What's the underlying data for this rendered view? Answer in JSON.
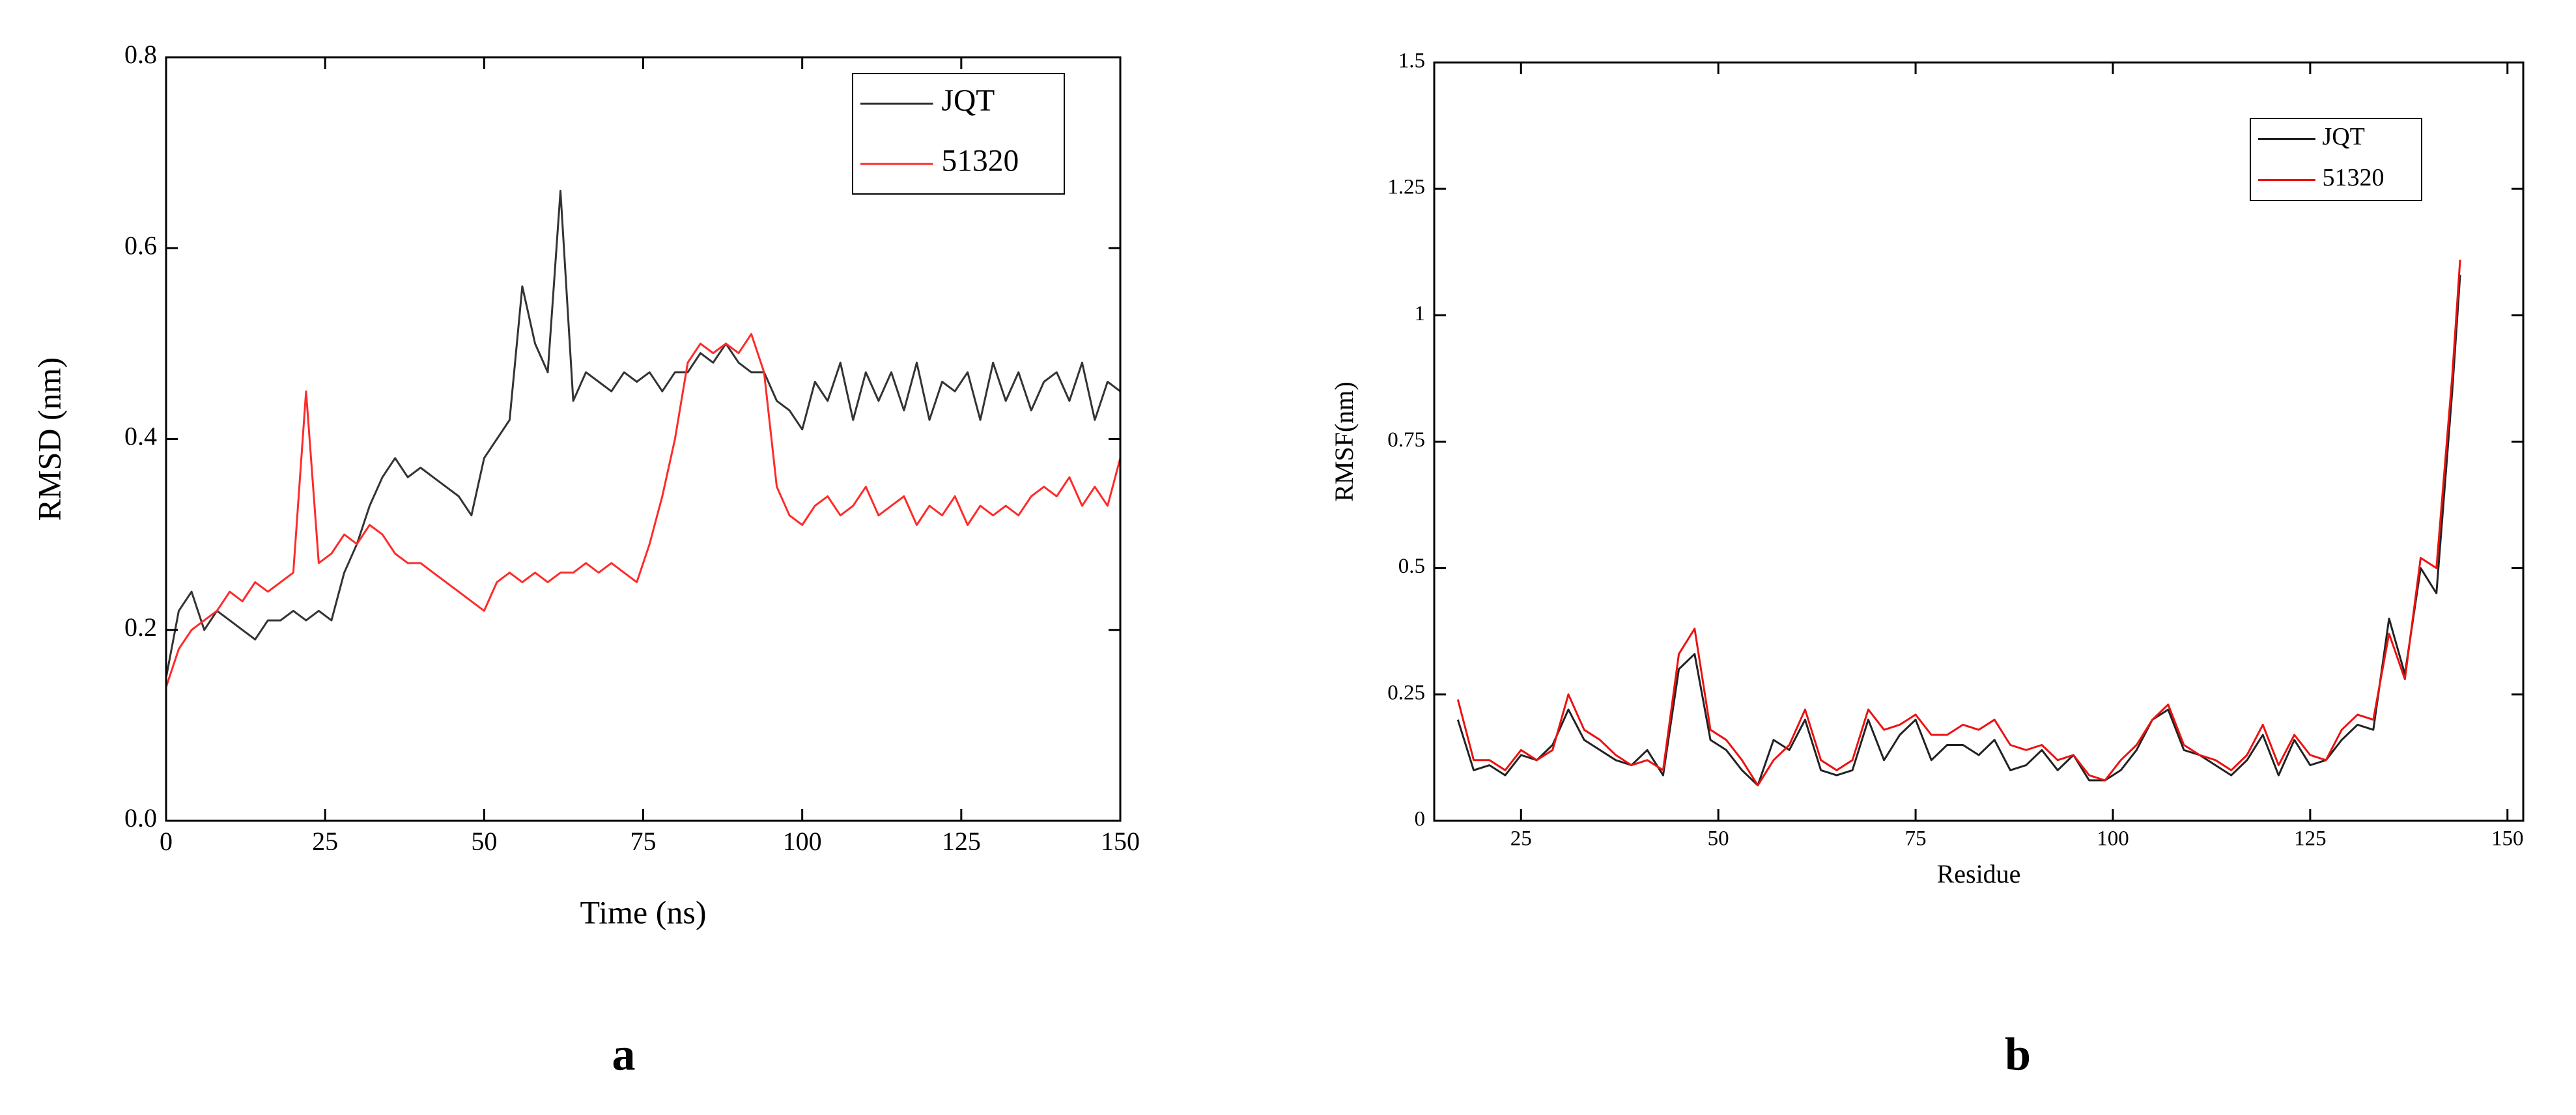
{
  "chart_data": [
    {
      "type": "line",
      "panel_label": "a",
      "xlabel": "Time (ns)",
      "ylabel": "RMSD (nm)",
      "xlim": [
        0,
        150
      ],
      "ylim": [
        0,
        0.8
      ],
      "xticks": [
        0,
        25,
        50,
        75,
        100,
        125,
        150
      ],
      "yticks": [
        {
          "value": 0,
          "label": "0.0"
        },
        0.2,
        0.4,
        0.6,
        0.8
      ],
      "legend": "upper right",
      "x": [
        0,
        2,
        4,
        6,
        8,
        10,
        12,
        14,
        16,
        18,
        20,
        22,
        24,
        26,
        28,
        30,
        32,
        34,
        36,
        38,
        40,
        42,
        44,
        46,
        48,
        50,
        52,
        54,
        56,
        58,
        60,
        62,
        64,
        66,
        68,
        70,
        72,
        74,
        76,
        78,
        80,
        82,
        84,
        86,
        88,
        90,
        92,
        94,
        96,
        98,
        100,
        102,
        104,
        106,
        108,
        110,
        112,
        114,
        116,
        118,
        120,
        122,
        124,
        126,
        128,
        130,
        132,
        134,
        136,
        138,
        140,
        142,
        144,
        146,
        148,
        150
      ],
      "series": [
        {
          "name": "JQT",
          "color": "#333333",
          "values": [
            0.15,
            0.22,
            0.24,
            0.2,
            0.22,
            0.21,
            0.2,
            0.19,
            0.21,
            0.21,
            0.22,
            0.21,
            0.22,
            0.21,
            0.26,
            0.29,
            0.33,
            0.36,
            0.38,
            0.36,
            0.37,
            0.36,
            0.35,
            0.34,
            0.32,
            0.38,
            0.4,
            0.42,
            0.56,
            0.5,
            0.47,
            0.66,
            0.44,
            0.47,
            0.46,
            0.45,
            0.47,
            0.46,
            0.47,
            0.45,
            0.47,
            0.47,
            0.49,
            0.48,
            0.5,
            0.48,
            0.47,
            0.47,
            0.44,
            0.43,
            0.41,
            0.46,
            0.44,
            0.48,
            0.42,
            0.47,
            0.44,
            0.47,
            0.43,
            0.48,
            0.42,
            0.46,
            0.45,
            0.47,
            0.42,
            0.48,
            0.44,
            0.47,
            0.43,
            0.46,
            0.47,
            0.44,
            0.48,
            0.42,
            0.46,
            0.45
          ]
        },
        {
          "name": "51320",
          "color": "#ff2a2a",
          "values": [
            0.14,
            0.18,
            0.2,
            0.21,
            0.22,
            0.24,
            0.23,
            0.25,
            0.24,
            0.25,
            0.26,
            0.45,
            0.27,
            0.28,
            0.3,
            0.29,
            0.31,
            0.3,
            0.28,
            0.27,
            0.27,
            0.26,
            0.25,
            0.24,
            0.23,
            0.22,
            0.25,
            0.26,
            0.25,
            0.26,
            0.25,
            0.26,
            0.26,
            0.27,
            0.26,
            0.27,
            0.26,
            0.25,
            0.29,
            0.34,
            0.4,
            0.48,
            0.5,
            0.49,
            0.5,
            0.49,
            0.51,
            0.47,
            0.35,
            0.32,
            0.31,
            0.33,
            0.34,
            0.32,
            0.33,
            0.35,
            0.32,
            0.33,
            0.34,
            0.31,
            0.33,
            0.32,
            0.34,
            0.31,
            0.33,
            0.32,
            0.33,
            0.32,
            0.34,
            0.35,
            0.34,
            0.36,
            0.33,
            0.35,
            0.33,
            0.38
          ]
        }
      ]
    },
    {
      "type": "line",
      "panel_label": "b",
      "xlabel": "Residue",
      "ylabel": "RMSF(nm)",
      "xlim": [
        14,
        152
      ],
      "ylim": [
        0,
        1.5
      ],
      "xticks": [
        25,
        50,
        75,
        100,
        125,
        150
      ],
      "yticks": [
        0,
        0.25,
        0.5,
        0.75,
        1,
        1.25,
        1.5
      ],
      "legend": "upper right",
      "x": [
        17,
        19,
        21,
        23,
        25,
        27,
        29,
        31,
        33,
        35,
        37,
        39,
        41,
        43,
        45,
        47,
        49,
        51,
        53,
        55,
        57,
        59,
        61,
        63,
        65,
        67,
        69,
        71,
        73,
        75,
        77,
        79,
        81,
        83,
        85,
        87,
        89,
        91,
        93,
        95,
        97,
        99,
        101,
        103,
        105,
        107,
        109,
        111,
        113,
        115,
        117,
        119,
        121,
        123,
        125,
        127,
        129,
        131,
        133,
        135,
        137,
        139,
        141,
        143,
        144
      ],
      "series": [
        {
          "name": "JQT",
          "color": "#222222",
          "values": [
            0.2,
            0.1,
            0.11,
            0.09,
            0.13,
            0.12,
            0.15,
            0.22,
            0.16,
            0.14,
            0.12,
            0.11,
            0.14,
            0.09,
            0.3,
            0.33,
            0.16,
            0.14,
            0.1,
            0.07,
            0.16,
            0.14,
            0.2,
            0.1,
            0.09,
            0.1,
            0.2,
            0.12,
            0.17,
            0.2,
            0.12,
            0.15,
            0.15,
            0.13,
            0.16,
            0.1,
            0.11,
            0.14,
            0.1,
            0.13,
            0.08,
            0.08,
            0.1,
            0.14,
            0.2,
            0.22,
            0.14,
            0.13,
            0.11,
            0.09,
            0.12,
            0.17,
            0.09,
            0.16,
            0.11,
            0.12,
            0.16,
            0.19,
            0.18,
            0.4,
            0.29,
            0.5,
            0.45,
            0.85,
            1.08
          ]
        },
        {
          "name": "51320",
          "color": "#ee1111",
          "values": [
            0.24,
            0.12,
            0.12,
            0.1,
            0.14,
            0.12,
            0.14,
            0.25,
            0.18,
            0.16,
            0.13,
            0.11,
            0.12,
            0.1,
            0.33,
            0.38,
            0.18,
            0.16,
            0.12,
            0.07,
            0.12,
            0.15,
            0.22,
            0.12,
            0.1,
            0.12,
            0.22,
            0.18,
            0.19,
            0.21,
            0.17,
            0.17,
            0.19,
            0.18,
            0.2,
            0.15,
            0.14,
            0.15,
            0.12,
            0.13,
            0.09,
            0.08,
            0.12,
            0.15,
            0.2,
            0.23,
            0.15,
            0.13,
            0.12,
            0.1,
            0.13,
            0.19,
            0.11,
            0.17,
            0.13,
            0.12,
            0.18,
            0.21,
            0.2,
            0.37,
            0.28,
            0.52,
            0.5,
            0.88,
            1.11
          ]
        }
      ]
    }
  ]
}
